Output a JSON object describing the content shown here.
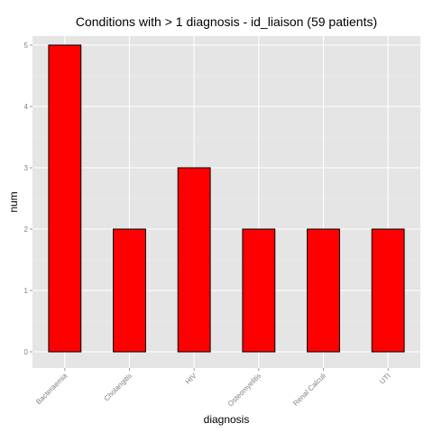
{
  "chart_data": {
    "type": "bar",
    "title": "Conditions with > 1 diagnosis - id_liaison (59 patients)",
    "xlabel": "diagnosis",
    "ylabel": "num",
    "categories": [
      "Bacteraemia",
      "Cholangitis",
      "HIV",
      "Osteomyelitis",
      "Renal Calculi",
      "UTI"
    ],
    "values": [
      5,
      2,
      3,
      2,
      2,
      2
    ],
    "ylim": [
      0,
      5.2
    ],
    "yticks": [
      "0",
      "1",
      "2",
      "3",
      "4",
      "5"
    ],
    "grid": true,
    "colors": {
      "bar_fill": "#ff0000",
      "bar_stroke": "#000000",
      "panel_background": "#e5e5e5",
      "grid_major": "#ffffff",
      "grid_minor": "#f2f2f2"
    }
  }
}
